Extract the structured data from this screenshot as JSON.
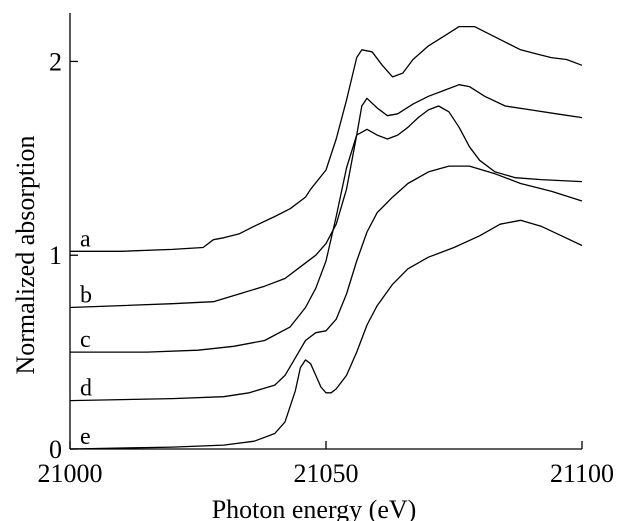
{
  "chart_data": {
    "type": "line",
    "title": "",
    "xlabel": "Photon energy (eV)",
    "ylabel": "Normalized absorption",
    "xlim": [
      21000,
      21100
    ],
    "ylim": [
      0,
      2.25
    ],
    "xticks": [
      21000,
      21050,
      21100
    ],
    "yticks": [
      0,
      1,
      2
    ],
    "grid": false,
    "legend": "none",
    "series": [
      {
        "name": "a",
        "x": [
          21000,
          21010,
          21020,
          21026,
          21028,
          21030,
          21033,
          21036,
          21040,
          21043,
          21046,
          21047,
          21050,
          21052,
          21054,
          21055,
          21056,
          21057,
          21059,
          21061,
          21063,
          21065,
          21067,
          21070,
          21073,
          21076,
          21079,
          21082,
          21085,
          21088,
          21091,
          21094,
          21097,
          21100
        ],
        "y": [
          1.02,
          1.02,
          1.03,
          1.04,
          1.08,
          1.09,
          1.11,
          1.15,
          1.2,
          1.24,
          1.3,
          1.34,
          1.44,
          1.6,
          1.8,
          1.91,
          2.02,
          2.06,
          2.05,
          1.98,
          1.92,
          1.94,
          2.01,
          2.08,
          2.13,
          2.18,
          2.18,
          2.14,
          2.1,
          2.06,
          2.04,
          2.02,
          2.01,
          1.98
        ]
      },
      {
        "name": "b",
        "x": [
          21000,
          21010,
          21020,
          21028,
          21033,
          21038,
          21042,
          21045,
          21048,
          21050,
          21052,
          21054,
          21056,
          21057,
          21058,
          21060,
          21062,
          21064,
          21067,
          21070,
          21073,
          21076,
          21078,
          21081,
          21085,
          21090,
          21095,
          21100
        ],
        "y": [
          0.73,
          0.74,
          0.75,
          0.76,
          0.8,
          0.84,
          0.88,
          0.94,
          1.0,
          1.06,
          1.16,
          1.34,
          1.62,
          1.77,
          1.81,
          1.76,
          1.72,
          1.73,
          1.78,
          1.82,
          1.85,
          1.88,
          1.87,
          1.82,
          1.77,
          1.75,
          1.73,
          1.71
        ]
      },
      {
        "name": "c",
        "x": [
          21000,
          21015,
          21025,
          21032,
          21038,
          21043,
          21046,
          21048,
          21050,
          21052,
          21054,
          21056,
          21058,
          21060,
          21062,
          21064,
          21066,
          21068,
          21070,
          21072,
          21074,
          21076,
          21078,
          21080,
          21083,
          21087,
          21092,
          21100
        ],
        "y": [
          0.5,
          0.5,
          0.51,
          0.53,
          0.56,
          0.63,
          0.73,
          0.83,
          0.97,
          1.2,
          1.45,
          1.62,
          1.65,
          1.62,
          1.6,
          1.62,
          1.66,
          1.71,
          1.75,
          1.77,
          1.74,
          1.66,
          1.56,
          1.49,
          1.43,
          1.4,
          1.39,
          1.38
        ]
      },
      {
        "name": "d",
        "x": [
          21000,
          21020,
          21030,
          21035,
          21040,
          21042,
          21044,
          21046,
          21048,
          21050,
          21052,
          21054,
          21056,
          21058,
          21060,
          21063,
          21066,
          21070,
          21074,
          21078,
          21083,
          21088,
          21094,
          21100
        ],
        "y": [
          0.25,
          0.26,
          0.27,
          0.29,
          0.33,
          0.38,
          0.47,
          0.56,
          0.6,
          0.61,
          0.67,
          0.8,
          0.97,
          1.12,
          1.22,
          1.3,
          1.37,
          1.43,
          1.46,
          1.46,
          1.42,
          1.37,
          1.33,
          1.28
        ]
      },
      {
        "name": "e",
        "x": [
          21000,
          21020,
          21030,
          21036,
          21040,
          21042,
          21044,
          21045,
          21046,
          21047,
          21048,
          21049,
          21050,
          21051,
          21052,
          21054,
          21056,
          21058,
          21060,
          21063,
          21066,
          21070,
          21075,
          21080,
          21084,
          21088,
          21092,
          21096,
          21100
        ],
        "y": [
          0.0,
          0.01,
          0.02,
          0.04,
          0.08,
          0.14,
          0.3,
          0.42,
          0.46,
          0.44,
          0.38,
          0.32,
          0.29,
          0.29,
          0.31,
          0.38,
          0.5,
          0.64,
          0.74,
          0.85,
          0.93,
          0.99,
          1.04,
          1.1,
          1.16,
          1.18,
          1.15,
          1.1,
          1.05
        ]
      }
    ]
  }
}
